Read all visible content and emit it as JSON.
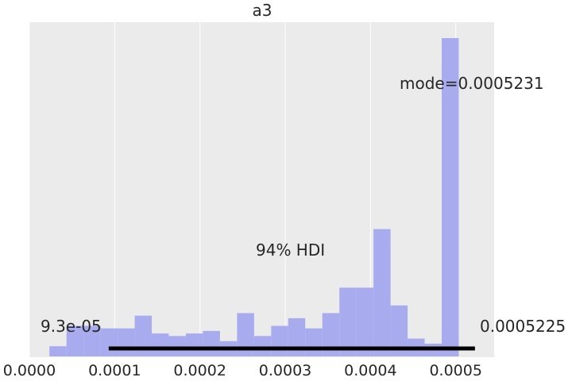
{
  "chart_data": {
    "type": "bar",
    "title": "a3",
    "xlabel": "",
    "ylabel": "",
    "grid": true,
    "xlim": [
      0.0,
      0.000545
    ],
    "xticks": [
      "0.0000",
      "0.0001",
      "0.0002",
      "0.0003",
      "0.0004",
      "0.0005"
    ],
    "xtick_values": [
      0.0,
      0.0001,
      0.0002,
      0.0003,
      0.0004,
      0.0005
    ],
    "bar_color": "#a8acee",
    "hdi_color": "#000000",
    "background_color": "#ebebeb",
    "bin_edges": [
      2.35e-05,
      4.35e-05,
      6.35e-05,
      8.35e-05,
      0.0001035,
      0.0001235,
      0.0001435,
      0.0001635,
      0.0001835,
      0.0002035,
      0.0002235,
      0.0002435,
      0.0002635,
      0.0002835,
      0.0003035,
      0.0003235,
      0.0003435,
      0.0003635,
      0.0003835,
      0.0004035,
      0.0004235,
      0.0004435,
      0.0004635,
      0.0004835,
      0.0005035,
      0.0005235
    ],
    "counts": [
      4,
      12,
      12,
      11,
      11,
      16,
      9,
      8,
      9,
      10,
      6,
      17,
      8,
      12,
      15,
      11,
      17,
      27,
      27,
      50,
      20,
      7,
      5,
      125,
      0
    ],
    "hdi": {
      "label": "94% HDI",
      "low": 9.3e-05,
      "high": 0.0005225,
      "low_label": "9.3e-05",
      "high_label": "0.0005225"
    },
    "mode": {
      "value": 0.0005231,
      "label": "mode=0.0005231"
    }
  }
}
